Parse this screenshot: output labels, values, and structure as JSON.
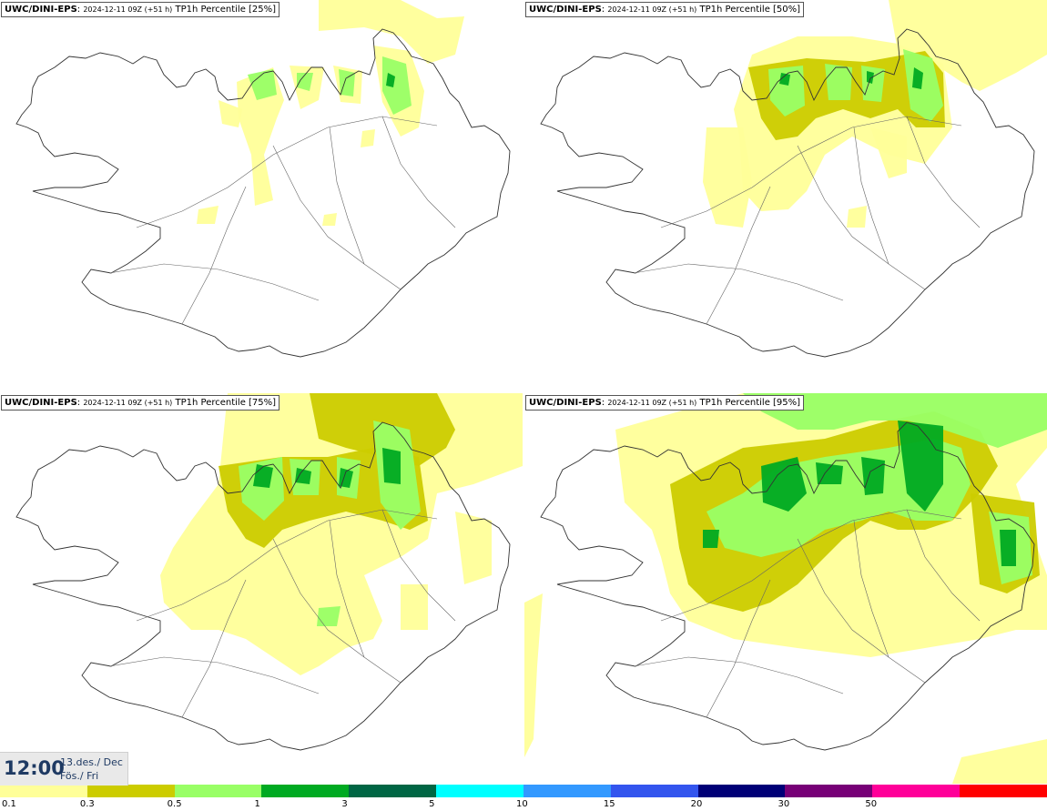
{
  "panels": [
    {
      "source": "UWC/DINI-EPS",
      "run": "2024-12-11 09Z (+51 h)",
      "field": "TP1h Percentile [25%]"
    },
    {
      "source": "UWC/DINI-EPS",
      "run": "2024-12-11 09Z (+51 h)",
      "field": "TP1h Percentile [50%]"
    },
    {
      "source": "UWC/DINI-EPS",
      "run": "2024-12-11 09Z (+51 h)",
      "field": "TP1h Percentile [75%]"
    },
    {
      "source": "UWC/DINI-EPS",
      "run": "2024-12-11 09Z (+51 h)",
      "field": "TP1h Percentile [95%]"
    }
  ],
  "valid_time": {
    "time": "12:00",
    "date_line1": "13.des./ Dec",
    "date_line2": "Fös./ Fri"
  },
  "legend": {
    "colors": [
      "#ffff99",
      "#cccc00",
      "#99ff66",
      "#00aa22",
      "#006644",
      "#00ffff",
      "#3399ff",
      "#3355ee",
      "#000077",
      "#770077",
      "#ff0099",
      "#ff0000"
    ],
    "labels": [
      "0.1",
      "0.3",
      "0.5",
      "1",
      "3",
      "5",
      "10",
      "15",
      "20",
      "30",
      "50"
    ]
  }
}
